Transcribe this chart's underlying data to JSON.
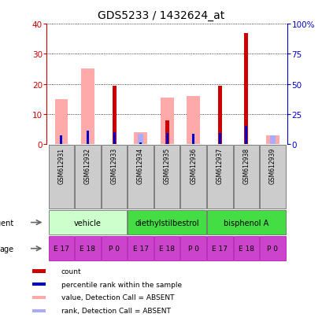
{
  "title": "GDS5233 / 1432624_at",
  "samples": [
    "GSM612931",
    "GSM612932",
    "GSM612933",
    "GSM612934",
    "GSM612935",
    "GSM612936",
    "GSM612937",
    "GSM612938",
    "GSM612939"
  ],
  "count_values": [
    0,
    0,
    19.5,
    0,
    8.0,
    0,
    19.5,
    37.0,
    0
  ],
  "rank_values": [
    7.5,
    11.5,
    10.2,
    1.2,
    9.0,
    8.5,
    9.5,
    15.0,
    0
  ],
  "pink_values": [
    15.0,
    25.0,
    0,
    4.0,
    15.5,
    16.0,
    0,
    0,
    3.0
  ],
  "light_blue_values": [
    0,
    0,
    0,
    3.5,
    0,
    0,
    0,
    0,
    3.0
  ],
  "count_color": "#cc0000",
  "rank_color": "#0000cc",
  "pink_color": "#ffaaaa",
  "light_blue_color": "#aaaaff",
  "ylim_left": [
    0,
    40
  ],
  "ylim_right": [
    0,
    100
  ],
  "yticks_left": [
    0,
    10,
    20,
    30,
    40
  ],
  "yticks_right": [
    0,
    25,
    50,
    75,
    100
  ],
  "yticklabels_right": [
    "0",
    "25",
    "50",
    "75",
    "100%"
  ],
  "agent_labels": [
    "vehicle",
    "diethylstilbestrol",
    "bisphenol A"
  ],
  "agent_colors": [
    "#ccffcc",
    "#44dd44",
    "#44dd44"
  ],
  "age_labels": [
    "E 17",
    "E 18",
    "P 0",
    "E 17",
    "E 18",
    "P 0",
    "E 17",
    "E 18",
    "P 0"
  ],
  "age_color": "#cc44cc",
  "legend_labels": [
    "count",
    "percentile rank within the sample",
    "value, Detection Call = ABSENT",
    "rank, Detection Call = ABSENT"
  ],
  "legend_colors": [
    "#cc0000",
    "#0000cc",
    "#ffaaaa",
    "#aaaaff"
  ],
  "sample_bg": "#cccccc",
  "left_axis_color": "#cc0000",
  "right_axis_color": "#0000cc",
  "bg_color": "#ffffff"
}
